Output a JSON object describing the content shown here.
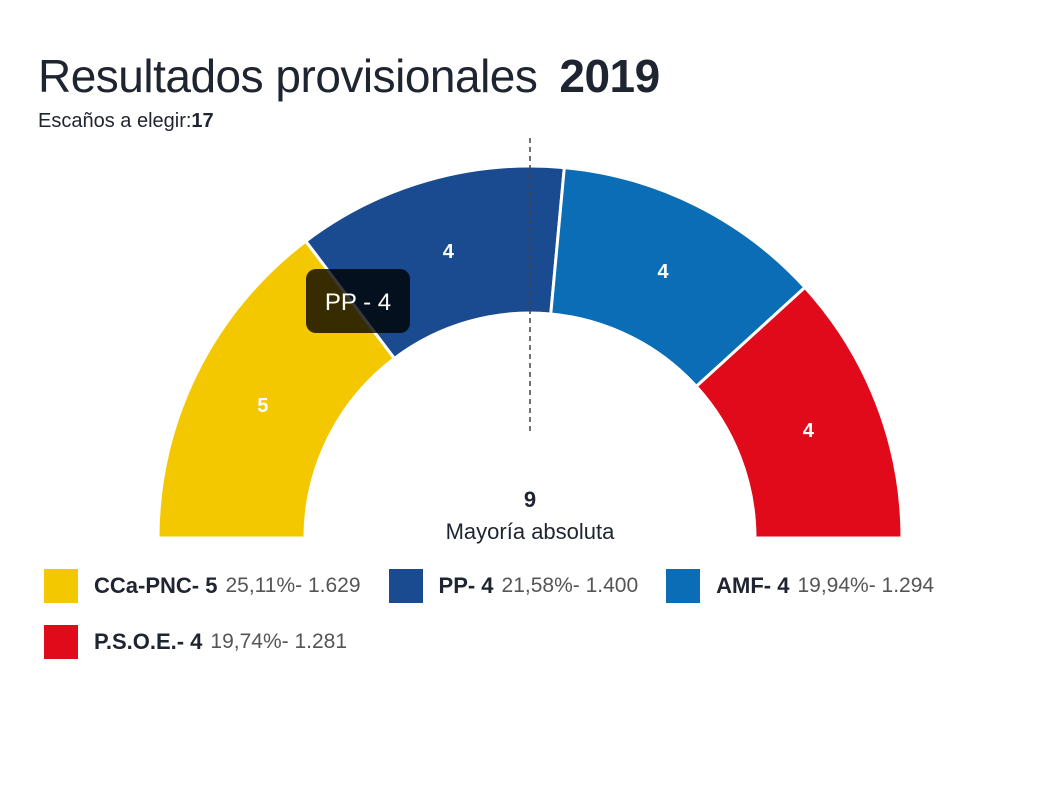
{
  "header": {
    "title": "Resultados provisionales",
    "year": "2019",
    "seats_label": "Escaños a elegir:",
    "seats_total": "17"
  },
  "majority": {
    "value": "9",
    "label": "Mayoría absoluta"
  },
  "tooltip": {
    "text": "PP - 4"
  },
  "chart_data": {
    "type": "pie",
    "variant": "semicircle-parliament",
    "total_seats": 17,
    "majority": 9,
    "series": [
      {
        "name": "CCa-PNC",
        "seats": 5,
        "percent": "25,11%",
        "votes": "1.629",
        "color": "#f4c800"
      },
      {
        "name": "PP",
        "seats": 4,
        "percent": "21,58%",
        "votes": "1.400",
        "color": "#1a4a8f"
      },
      {
        "name": "AMF",
        "seats": 4,
        "percent": "19,94%",
        "votes": "1.294",
        "color": "#0a6db5"
      },
      {
        "name": "P.S.O.E.",
        "seats": 4,
        "percent": "19,74%",
        "votes": "1.281",
        "color": "#e00a1a"
      }
    ]
  },
  "legend": {
    "items": [
      {
        "name": "CCa-PNC- 5",
        "stats": "25,11%- 1.629"
      },
      {
        "name": "PP- 4",
        "stats": "21,58%- 1.400"
      },
      {
        "name": "AMF- 4",
        "stats": "19,94%- 1.294"
      },
      {
        "name": "P.S.O.E.- 4",
        "stats": "19,74%- 1.281"
      }
    ]
  }
}
